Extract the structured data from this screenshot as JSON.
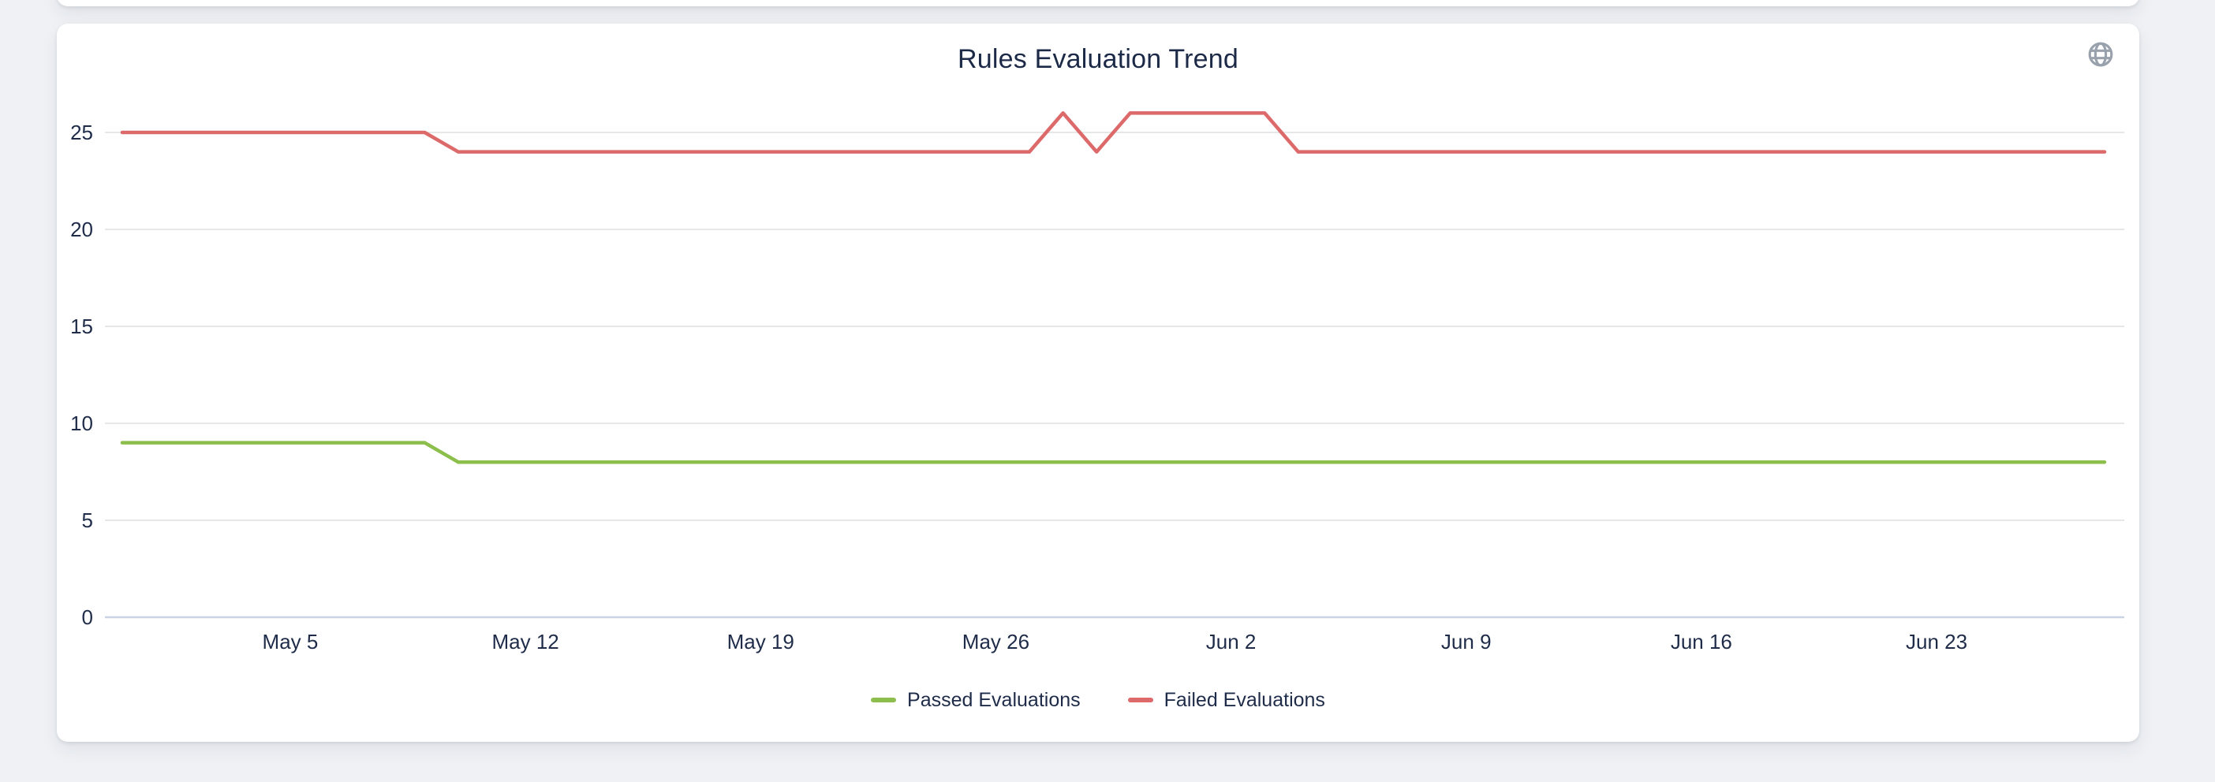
{
  "page": {
    "background": "#eff1f5"
  },
  "card": {
    "title": "Rules Evaluation Trend"
  },
  "icons": {
    "globe": "globe-icon"
  },
  "colors": {
    "passed": "#8CBE4C",
    "failed": "#DD6A6A",
    "text": "#1F2C49",
    "grid": "#E7E7E7",
    "zero_axis": "#C9D3E3",
    "icon_gray": "#99A1AC"
  },
  "chart_data": {
    "type": "line",
    "title": "Rules Evaluation Trend",
    "grid": true,
    "legend_position": "bottom",
    "ylim": [
      0,
      26.6
    ],
    "y_ticks": [
      0,
      5,
      10,
      15,
      20,
      25
    ],
    "x": [
      "Apr 30",
      "May 1",
      "May 2",
      "May 3",
      "May 4",
      "May 5",
      "May 6",
      "May 7",
      "May 8",
      "May 9",
      "May 10",
      "May 11",
      "May 12",
      "May 13",
      "May 14",
      "May 15",
      "May 16",
      "May 17",
      "May 18",
      "May 19",
      "May 20",
      "May 21",
      "May 22",
      "May 23",
      "May 24",
      "May 25",
      "May 26",
      "May 27",
      "May 28",
      "May 29",
      "May 30",
      "May 31",
      "Jun 1",
      "Jun 2",
      "Jun 3",
      "Jun 4",
      "Jun 5",
      "Jun 6",
      "Jun 7",
      "Jun 8",
      "Jun 9",
      "Jun 10",
      "Jun 11",
      "Jun 12",
      "Jun 13",
      "Jun 14",
      "Jun 15",
      "Jun 16",
      "Jun 17",
      "Jun 18",
      "Jun 19",
      "Jun 20",
      "Jun 21",
      "Jun 22",
      "Jun 23",
      "Jun 24",
      "Jun 25",
      "Jun 26",
      "Jun 27",
      "Jun 28"
    ],
    "x_tick_labels": [
      "May 5",
      "May 12",
      "May 19",
      "May 26",
      "Jun 2",
      "Jun 9",
      "Jun 16",
      "Jun 23"
    ],
    "x_tick_indices": [
      5,
      12,
      19,
      26,
      33,
      40,
      47,
      54
    ],
    "series": [
      {
        "name": "Passed Evaluations",
        "color": "#8CBE4C",
        "values": [
          9,
          9,
          9,
          9,
          9,
          9,
          9,
          9,
          9,
          9,
          8,
          8,
          8,
          8,
          8,
          8,
          8,
          8,
          8,
          8,
          8,
          8,
          8,
          8,
          8,
          8,
          8,
          8,
          8,
          8,
          8,
          8,
          8,
          8,
          8,
          8,
          8,
          8,
          8,
          8,
          8,
          8,
          8,
          8,
          8,
          8,
          8,
          8,
          8,
          8,
          8,
          8,
          8,
          8,
          8,
          8,
          8,
          8,
          8,
          8
        ]
      },
      {
        "name": "Failed Evaluations",
        "color": "#DD6A6A",
        "values": [
          25,
          25,
          25,
          25,
          25,
          25,
          25,
          25,
          25,
          25,
          24,
          24,
          24,
          24,
          24,
          24,
          24,
          24,
          24,
          24,
          24,
          24,
          24,
          24,
          24,
          24,
          24,
          24,
          26,
          24,
          26,
          26,
          26,
          26,
          26,
          24,
          24,
          24,
          24,
          24,
          24,
          24,
          24,
          24,
          24,
          24,
          24,
          24,
          24,
          24,
          24,
          24,
          24,
          24,
          24,
          24,
          24,
          24,
          24,
          24
        ]
      }
    ]
  }
}
